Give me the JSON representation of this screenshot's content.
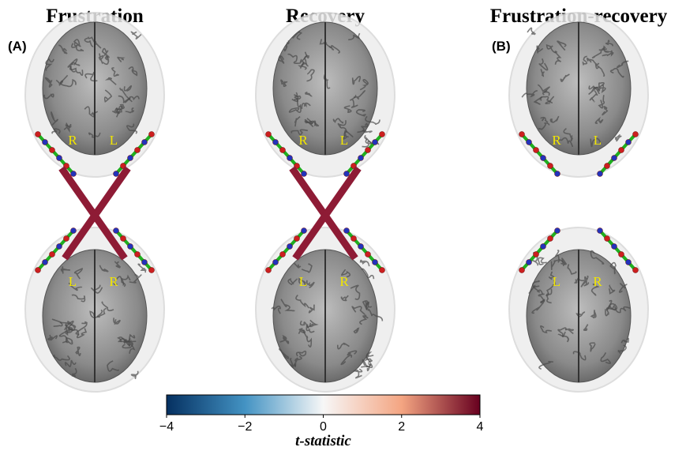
{
  "panels": [
    {
      "label": "(A)",
      "title": "Frustration",
      "top": {
        "left": "R",
        "right": "L"
      },
      "bottom": {
        "left": "L",
        "right": "R"
      }
    },
    {
      "title": "Recovery",
      "top": {
        "left": "R",
        "right": "L"
      },
      "bottom": {
        "left": "L",
        "right": "R"
      }
    },
    {
      "label": "(B)",
      "title": "Frustration-recovery",
      "top": {
        "left": "R",
        "right": "L"
      },
      "bottom": {
        "left": "L",
        "right": "R"
      }
    }
  ],
  "colorbar": {
    "lim": [
      -4,
      4
    ],
    "ticks": [
      {
        "value": -4,
        "label": "−4"
      },
      {
        "value": -2,
        "label": "−2"
      },
      0,
      2,
      4
    ],
    "label": "t-statistic"
  }
}
